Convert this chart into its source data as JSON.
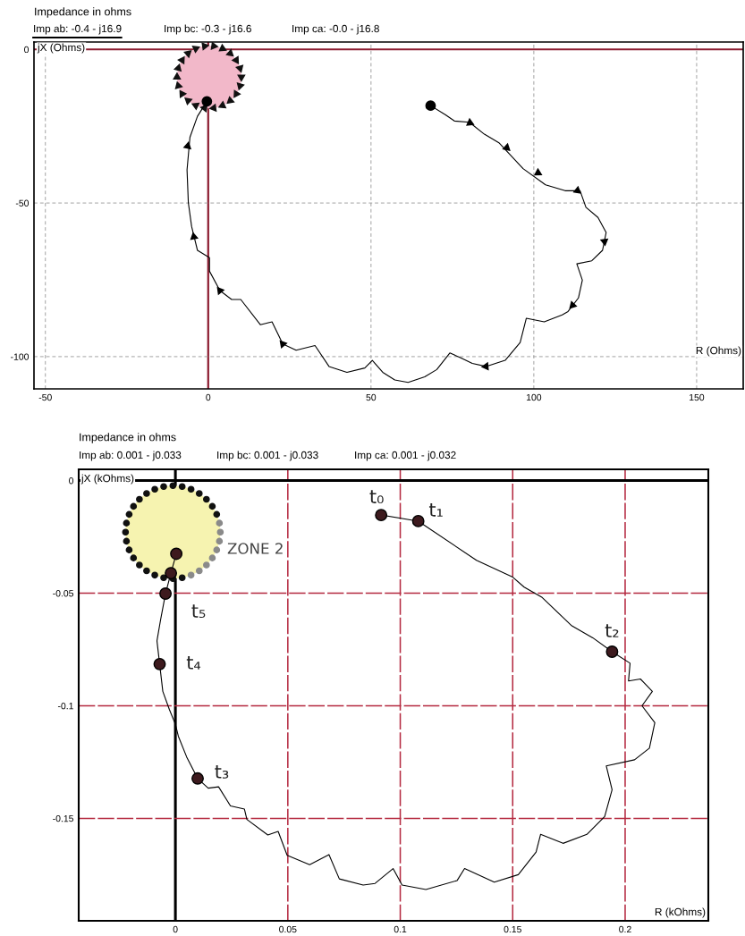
{
  "chart_data": [
    {
      "type": "line",
      "title": "Impedance in ohms",
      "annotations": [
        "Imp ab: -0.4 - j16.9",
        "Imp bc: -0.3 - j16.6",
        "Imp ca: -0.0 - j16.8"
      ],
      "xlabel": "R (Ohms)",
      "ylabel": "jX (Ohms)",
      "xlim": [
        -53.5,
        164.3
      ],
      "ylim": [
        -110.5,
        2.4
      ],
      "xticks": [
        -50,
        0,
        50,
        100,
        150
      ],
      "yticks": [
        0,
        -50,
        -100
      ],
      "grid": true,
      "series": [
        {
          "color": "#000000",
          "x": [
            68.3,
            72.9,
            75.6,
            80.2,
            84.8,
            89.4,
            96.7,
            103.6,
            109.6,
            114.2,
            116.0,
            119.7,
            122.2,
            121.1,
            117.8,
            113.2,
            114.9,
            113.7,
            110.5,
            108.7,
            103.2,
            97.7,
            95.8,
            91.2,
            85.3,
            81.1,
            77.4,
            74.2,
            70.2,
            66.5,
            61.4,
            57.3,
            53.6,
            50.4,
            48.1,
            42.6,
            37.1,
            32.8,
            27.0,
            22.9,
            19.6,
            16.0,
            10.0,
            7.2,
            3.6,
            0.4,
            0.4,
            -3.3,
            -5.1,
            -6.1,
            -6.5,
            -5.6,
            -3.3,
            -0.4
          ],
          "values": [
            -18.3,
            -21.3,
            -23.3,
            -23.7,
            -27.6,
            -30.5,
            -38.8,
            -44.1,
            -46.0,
            -46.0,
            -51.4,
            -54.7,
            -59.6,
            -65.4,
            -68.8,
            -69.8,
            -75.1,
            -80.9,
            -85.3,
            -86.4,
            -88.7,
            -87.5,
            -95.4,
            -101.2,
            -103.2,
            -102.2,
            -100.3,
            -98.8,
            -104.2,
            -106.6,
            -108.4,
            -107.6,
            -105.1,
            -101.2,
            -103.7,
            -105.1,
            -103.2,
            -96.4,
            -97.9,
            -95.9,
            -88.7,
            -89.6,
            -81.4,
            -81.4,
            -78.5,
            -72.2,
            -67.8,
            -65.4,
            -57.6,
            -49.9,
            -39.2,
            -28.6,
            -21.8,
            -16.9
          ]
        },
        {
          "type": "scatter",
          "marker": "triangle",
          "color": "#000000",
          "x": [
            80.4,
            91.7,
            101.3,
            113.4,
            121.7,
            111.9,
            85.3,
            22.9,
            3.6,
            -4.4,
            -6.3
          ],
          "values": [
            -23.9,
            -32.0,
            -40.2,
            -46.0,
            -62.5,
            -83.3,
            -103.2,
            -95.9,
            -78.5,
            -61.0,
            -31.5
          ]
        },
        {
          "type": "scatter",
          "marker": "circle",
          "color": "#000000",
          "x": [
            68.3,
            -0.4
          ],
          "values": [
            -18.3,
            -16.9
          ]
        }
      ]
    },
    {
      "type": "line",
      "title": "Impedance in ohms",
      "annotations": [
        "Imp ab: 0.001 - j0.033",
        "Imp bc: 0.001 - j0.033",
        "Imp ca: 0.001 - j0.032",
        "ZONE 2",
        {
          "text": "t₀",
          "x": 0.0915,
          "y": -0.0153
        },
        {
          "text": "t₁",
          "x": 0.108,
          "y": -0.018
        },
        {
          "text": "t₂",
          "x": 0.1942,
          "y": -0.076
        },
        {
          "text": "t₃",
          "x": 0.0099,
          "y": -0.1323
        },
        {
          "text": "t₄",
          "x": -0.007,
          "y": -0.0815
        },
        {
          "text": "t₅",
          "x": -0.0044,
          "y": -0.0502
        }
      ],
      "xlabel": "R (kOhms)",
      "ylabel": "jX (kOhms)",
      "xlim": [
        -0.043,
        0.237
      ],
      "ylim": [
        -0.1955,
        0.005
      ],
      "xticks": [
        0,
        0.05,
        0.1,
        0.15,
        0.2
      ],
      "yticks": [
        0,
        -0.05,
        -0.1,
        -0.15
      ],
      "grid": true,
      "series": [
        {
          "color": "#000000",
          "x": [
            0.0915,
            0.108,
            0.1339,
            0.1498,
            0.1551,
            0.1631,
            0.1763,
            0.1856,
            0.1942,
            0.2022,
            0.2015,
            0.2068,
            0.2121,
            0.2075,
            0.2132,
            0.2108,
            0.2042,
            0.1916,
            0.1942,
            0.1909,
            0.183,
            0.1724,
            0.1624,
            0.1604,
            0.1525,
            0.1418,
            0.1286,
            0.1253,
            0.1114,
            0.1008,
            0.0968,
            0.0888,
            0.0835,
            0.0729,
            0.0683,
            0.0597,
            0.0497,
            0.0457,
            0.0411,
            0.0318,
            0.0307,
            0.0245,
            0.0192,
            0.0146,
            0.0099,
            0.005,
            0.0013,
            0.0,
            -0.0027,
            -0.0056,
            -0.007,
            -0.0082,
            -0.0066,
            -0.0044,
            -0.002,
            0.0004
          ],
          "values": [
            -0.0153,
            -0.018,
            -0.0354,
            -0.0427,
            -0.0473,
            -0.0519,
            -0.0645,
            -0.0698,
            -0.076,
            -0.0811,
            -0.089,
            -0.0881,
            -0.0936,
            -0.1,
            -0.1075,
            -0.1188,
            -0.124,
            -0.1267,
            -0.1373,
            -0.1492,
            -0.1571,
            -0.1611,
            -0.1571,
            -0.165,
            -0.175,
            -0.1783,
            -0.1723,
            -0.1776,
            -0.1816,
            -0.1796,
            -0.1723,
            -0.1789,
            -0.1796,
            -0.1769,
            -0.1661,
            -0.1706,
            -0.1664,
            -0.1558,
            -0.1574,
            -0.1505,
            -0.1459,
            -0.1445,
            -0.136,
            -0.1366,
            -0.1323,
            -0.1227,
            -0.1135,
            -0.1082,
            -0.1016,
            -0.0936,
            -0.0815,
            -0.0712,
            -0.0619,
            -0.0502,
            -0.0411,
            -0.0325
          ]
        },
        {
          "type": "scatter",
          "marker": "circle",
          "color": "#3d1a1e",
          "x": [
            0.0915,
            0.108,
            0.1942,
            0.0099,
            -0.007,
            -0.0044,
            -0.002,
            0.0004
          ],
          "values": [
            -0.0153,
            -0.018,
            -0.076,
            -0.1323,
            -0.0815,
            -0.0502,
            -0.0411,
            -0.0325
          ]
        }
      ]
    }
  ]
}
